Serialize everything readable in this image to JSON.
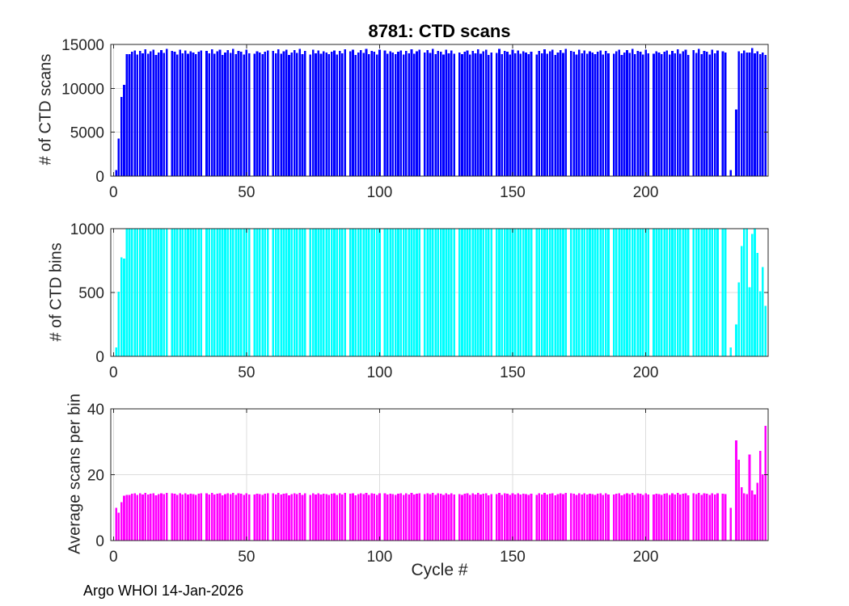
{
  "chart_data": {
    "type": "bar",
    "title": "8781: CTD scans",
    "xlabel": "Cycle #",
    "annotation": "Argo WHOI 14-Jan-2026",
    "x_start": 1,
    "xlim": [
      -1,
      246
    ],
    "xticks": [
      0,
      50,
      100,
      150,
      200
    ],
    "grid": true,
    "axis_color": "#262626",
    "grid_color": "#dcdcdc",
    "background": "#ffffff",
    "subplots": [
      {
        "name": "ctd-scans",
        "ylabel": "# of CTD scans",
        "color": "#0000ff",
        "ylim": [
          0,
          15000
        ],
        "yticks": [
          0,
          5000,
          10000,
          15000
        ],
        "values": [
          700,
          4300,
          9000,
          10400,
          13900,
          13900,
          14150,
          14300,
          13850,
          14250,
          14000,
          14450,
          13950,
          14200,
          14400,
          13800,
          14100,
          14350,
          14050,
          14500,
          0,
          14250,
          14150,
          13850,
          14400,
          14000,
          14300,
          13950,
          14200,
          14100,
          13900,
          14150,
          14300,
          0,
          14250,
          14000,
          14450,
          13950,
          14200,
          14400,
          13800,
          14100,
          14350,
          14050,
          14500,
          13900,
          14250,
          14150,
          13850,
          14400,
          14000,
          0,
          13950,
          14200,
          14100,
          13900,
          14150,
          14300,
          0,
          14250,
          14000,
          14450,
          13950,
          14200,
          14400,
          13800,
          14100,
          14350,
          14050,
          14500,
          13900,
          14250,
          0,
          13850,
          14400,
          14000,
          14300,
          13950,
          14200,
          14100,
          13900,
          14150,
          14300,
          13850,
          14250,
          14000,
          14450,
          0,
          14200,
          14400,
          13800,
          14100,
          14350,
          14050,
          14500,
          13900,
          14250,
          14150,
          13850,
          14400,
          0,
          14300,
          13950,
          14200,
          14100,
          13900,
          14150,
          14300,
          13850,
          14250,
          14000,
          14450,
          13950,
          14200,
          14400,
          0,
          14100,
          14350,
          14050,
          14500,
          13900,
          14250,
          14150,
          13850,
          14400,
          14000,
          14300,
          13950,
          0,
          14100,
          13900,
          14150,
          14300,
          13850,
          14250,
          14000,
          14450,
          13950,
          14200,
          14400,
          13800,
          14100,
          0,
          14050,
          14500,
          13900,
          14250,
          14150,
          13850,
          14400,
          14000,
          14300,
          13950,
          14200,
          14100,
          13900,
          14150,
          0,
          13850,
          14250,
          14000,
          14450,
          13950,
          14200,
          14400,
          13800,
          14100,
          14350,
          14050,
          14500,
          0,
          14250,
          14150,
          13850,
          14400,
          14000,
          14300,
          13950,
          14200,
          14100,
          13900,
          14150,
          14300,
          13850,
          14250,
          14000,
          0,
          13950,
          14200,
          14400,
          13800,
          14100,
          14350,
          14050,
          14500,
          13900,
          14250,
          14150,
          13850,
          14400,
          14000,
          0,
          13950,
          14200,
          14100,
          13900,
          14150,
          14300,
          13850,
          14250,
          14000,
          14450,
          13950,
          14200,
          14400,
          13800,
          0,
          14350,
          14050,
          14500,
          13900,
          14250,
          14150,
          13850,
          14400,
          14000,
          14300,
          0,
          14200,
          14100,
          0,
          700,
          0,
          7600,
          14200,
          14000,
          14300,
          14100,
          14100,
          14600,
          14000,
          14200,
          13900,
          14100,
          13800
        ]
      },
      {
        "name": "ctd-bins",
        "ylabel": "# of CTD bins",
        "color": "#00ffff",
        "ylim": [
          0,
          1000
        ],
        "yticks": [
          0,
          500,
          1000
        ],
        "values": [
          70,
          505,
          775,
          765,
          1000,
          1000,
          1000,
          1000,
          1000,
          1000,
          1000,
          1000,
          1000,
          1000,
          1000,
          1000,
          1000,
          1000,
          1000,
          1000,
          0,
          1000,
          1000,
          1000,
          1000,
          1000,
          1000,
          1000,
          1000,
          1000,
          1000,
          1000,
          1000,
          0,
          1000,
          1000,
          1000,
          1000,
          1000,
          1000,
          1000,
          1000,
          1000,
          1000,
          1000,
          1000,
          1000,
          1000,
          1000,
          1000,
          1000,
          0,
          1000,
          1000,
          1000,
          1000,
          1000,
          1000,
          0,
          1000,
          1000,
          1000,
          1000,
          1000,
          1000,
          1000,
          1000,
          1000,
          1000,
          1000,
          1000,
          1000,
          0,
          1000,
          1000,
          1000,
          1000,
          1000,
          1000,
          1000,
          1000,
          1000,
          1000,
          1000,
          1000,
          1000,
          1000,
          0,
          1000,
          1000,
          1000,
          1000,
          1000,
          1000,
          1000,
          1000,
          1000,
          1000,
          1000,
          1000,
          0,
          1000,
          1000,
          1000,
          1000,
          1000,
          1000,
          1000,
          1000,
          1000,
          1000,
          1000,
          1000,
          1000,
          1000,
          0,
          1000,
          1000,
          1000,
          1000,
          1000,
          1000,
          1000,
          1000,
          1000,
          1000,
          1000,
          1000,
          0,
          1000,
          1000,
          1000,
          1000,
          1000,
          1000,
          1000,
          1000,
          1000,
          1000,
          1000,
          1000,
          1000,
          0,
          1000,
          1000,
          1000,
          1000,
          1000,
          1000,
          1000,
          1000,
          1000,
          1000,
          1000,
          1000,
          1000,
          1000,
          0,
          1000,
          1000,
          1000,
          1000,
          1000,
          1000,
          1000,
          1000,
          1000,
          1000,
          1000,
          1000,
          0,
          1000,
          1000,
          1000,
          1000,
          1000,
          1000,
          1000,
          1000,
          1000,
          1000,
          1000,
          1000,
          1000,
          1000,
          1000,
          0,
          1000,
          1000,
          1000,
          1000,
          1000,
          1000,
          1000,
          1000,
          1000,
          1000,
          1000,
          1000,
          1000,
          1000,
          0,
          1000,
          1000,
          1000,
          1000,
          1000,
          1000,
          1000,
          1000,
          1000,
          1000,
          1000,
          1000,
          1000,
          1000,
          0,
          1000,
          1000,
          1000,
          1000,
          1000,
          1000,
          1000,
          1000,
          1000,
          1000,
          0,
          1000,
          1000,
          0,
          70,
          0,
          250,
          580,
          865,
          1000,
          1000,
          540,
          960,
          1000,
          810,
          510,
          700,
          395
        ]
      },
      {
        "name": "avg-scans-per-bin",
        "ylabel": "Average scans per bin",
        "color": "#ff00ff",
        "ylim": [
          0,
          40
        ],
        "yticks": [
          0,
          20,
          40
        ],
        "values": [
          10,
          8.5,
          11.6,
          13.6,
          13.9,
          13.9,
          14.2,
          14.3,
          13.9,
          14.3,
          14.0,
          14.5,
          14.0,
          14.2,
          14.4,
          13.8,
          14.1,
          14.4,
          14.1,
          14.5,
          0,
          14.3,
          14.2,
          13.9,
          14.4,
          14.0,
          14.3,
          14.0,
          14.2,
          14.1,
          13.9,
          14.2,
          14.3,
          0,
          14.3,
          14.0,
          14.5,
          14.0,
          14.2,
          14.4,
          13.8,
          14.1,
          14.4,
          14.1,
          14.5,
          13.9,
          14.3,
          14.2,
          13.9,
          14.4,
          14.0,
          0,
          14.0,
          14.2,
          14.1,
          13.9,
          14.2,
          14.3,
          0,
          14.3,
          14.0,
          14.5,
          14.0,
          14.2,
          14.4,
          13.8,
          14.1,
          14.4,
          14.1,
          14.5,
          13.9,
          14.3,
          0,
          13.9,
          14.4,
          14.0,
          14.3,
          14.0,
          14.2,
          14.1,
          13.9,
          14.2,
          14.3,
          13.9,
          14.3,
          14.0,
          14.5,
          0,
          14.2,
          14.4,
          13.8,
          14.1,
          14.4,
          14.1,
          14.5,
          13.9,
          14.3,
          14.2,
          13.9,
          14.4,
          0,
          14.3,
          14.0,
          14.2,
          14.1,
          13.9,
          14.2,
          14.3,
          13.9,
          14.3,
          14.0,
          14.5,
          14.0,
          14.2,
          14.4,
          0,
          14.1,
          14.4,
          14.1,
          14.5,
          13.9,
          14.3,
          14.2,
          13.9,
          14.4,
          14.0,
          14.3,
          14.0,
          0,
          14.1,
          13.9,
          14.2,
          14.3,
          13.9,
          14.3,
          14.0,
          14.5,
          14.0,
          14.2,
          14.4,
          13.8,
          14.1,
          0,
          14.1,
          14.5,
          13.9,
          14.3,
          14.2,
          13.9,
          14.4,
          14.0,
          14.3,
          14.0,
          14.2,
          14.1,
          13.9,
          14.2,
          0,
          13.9,
          14.3,
          14.0,
          14.5,
          14.0,
          14.2,
          14.4,
          13.8,
          14.1,
          14.4,
          14.1,
          14.5,
          0,
          14.3,
          14.2,
          13.9,
          14.4,
          14.0,
          14.3,
          14.0,
          14.2,
          14.1,
          13.9,
          14.2,
          14.3,
          13.9,
          14.3,
          14.0,
          0,
          14.0,
          14.2,
          14.4,
          13.8,
          14.1,
          14.4,
          14.1,
          14.5,
          13.9,
          14.3,
          14.2,
          13.9,
          14.4,
          14.0,
          0,
          14.0,
          14.2,
          14.1,
          13.9,
          14.2,
          14.3,
          13.9,
          14.3,
          14.0,
          14.5,
          14.0,
          14.2,
          14.4,
          13.8,
          0,
          14.4,
          14.1,
          14.5,
          13.9,
          14.3,
          14.2,
          13.9,
          14.4,
          14.0,
          14.3,
          0,
          14.2,
          14.1,
          0,
          10.0,
          0,
          30.4,
          24.5,
          16.2,
          14.3,
          14.1,
          26.1,
          15.2,
          14.0,
          17.5,
          27.3,
          20.1,
          34.9
        ]
      }
    ]
  }
}
